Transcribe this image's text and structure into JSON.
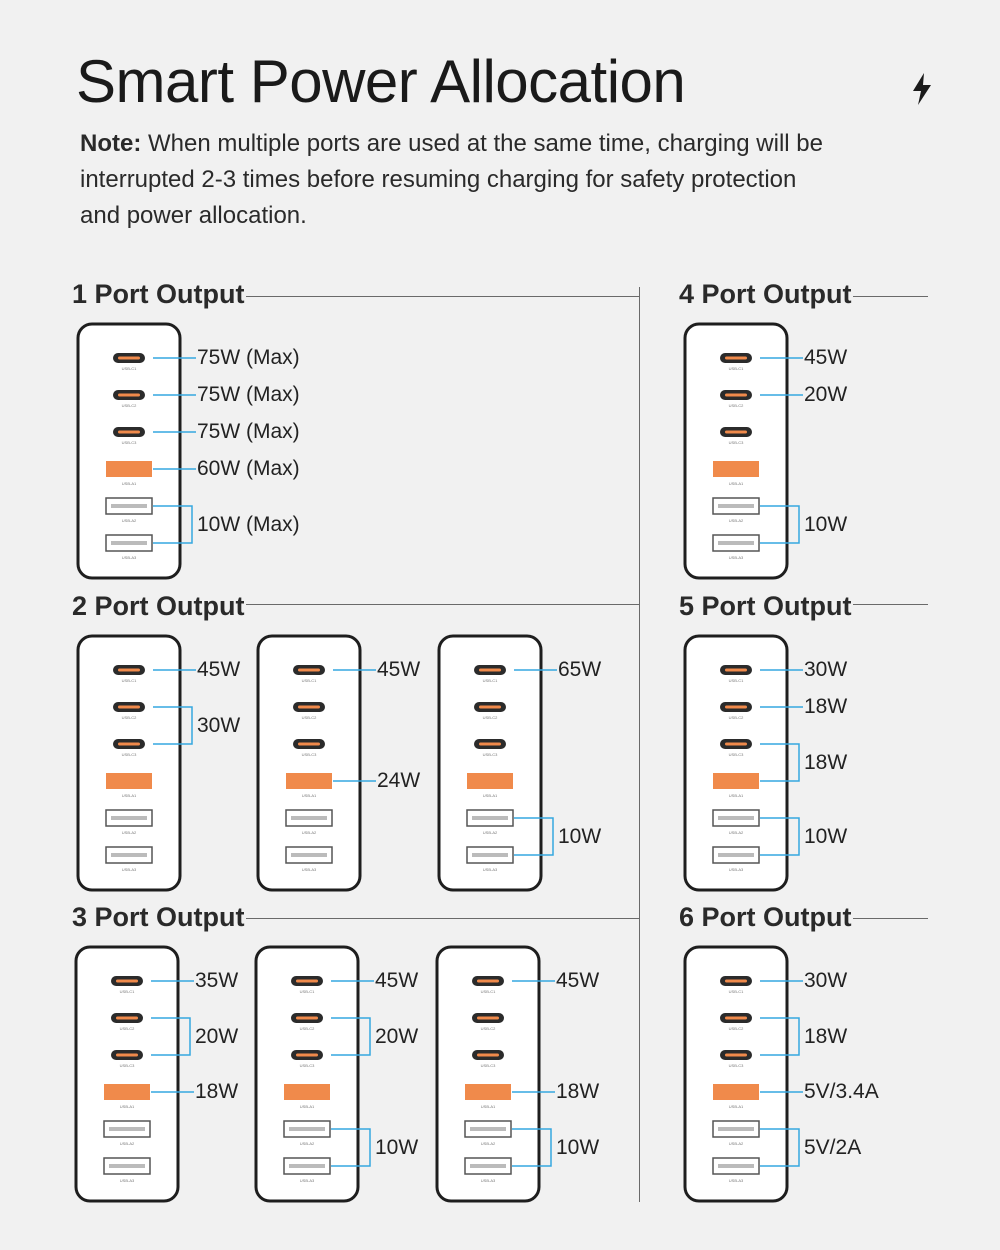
{
  "title": "Smart Power Allocation",
  "bolt_icon": "lightning-bolt-icon",
  "note": {
    "label": "Note:",
    "text": "When multiple ports are used at the same time, charging will be interrupted 2-3 times before resuming charging for safety protection and power allocation."
  },
  "colors": {
    "background": "#f1f1f1",
    "accent_port": "#f08a4b",
    "leader_line": "#35a7e0",
    "charger_outline": "#1e1e1e"
  },
  "port_names": [
    "USB-C1",
    "USB-C2",
    "USB-C3",
    "USB-A1",
    "USB-A2",
    "USB-A3"
  ],
  "sections": [
    {
      "id": "1",
      "title": "1 Port Output",
      "chargers": [
        {
          "labels": [
            {
              "ports": [
                0
              ],
              "text": "75W (Max)"
            },
            {
              "ports": [
                1
              ],
              "text": "75W (Max)"
            },
            {
              "ports": [
                2
              ],
              "text": "75W (Max)"
            },
            {
              "ports": [
                3
              ],
              "text": "60W (Max)"
            },
            {
              "ports": [
                4,
                5
              ],
              "text": "10W (Max)"
            }
          ]
        }
      ]
    },
    {
      "id": "2",
      "title": "2 Port Output",
      "chargers": [
        {
          "labels": [
            {
              "ports": [
                0
              ],
              "text": "45W"
            },
            {
              "ports": [
                1,
                2
              ],
              "text": "30W"
            }
          ]
        },
        {
          "labels": [
            {
              "ports": [
                0
              ],
              "text": "45W"
            },
            {
              "ports": [
                3
              ],
              "text": "24W"
            }
          ]
        },
        {
          "labels": [
            {
              "ports": [
                0
              ],
              "text": "65W"
            },
            {
              "ports": [
                4,
                5
              ],
              "text": "10W"
            }
          ]
        }
      ]
    },
    {
      "id": "3",
      "title": "3 Port Output",
      "chargers": [
        {
          "labels": [
            {
              "ports": [
                0
              ],
              "text": "35W"
            },
            {
              "ports": [
                1,
                2
              ],
              "text": "20W"
            },
            {
              "ports": [
                3
              ],
              "text": "18W"
            }
          ]
        },
        {
          "labels": [
            {
              "ports": [
                0
              ],
              "text": "45W"
            },
            {
              "ports": [
                1,
                2
              ],
              "text": "20W"
            },
            {
              "ports": [
                4,
                5
              ],
              "text": "10W"
            }
          ]
        },
        {
          "labels": [
            {
              "ports": [
                0
              ],
              "text": "45W"
            },
            {
              "ports": [
                3
              ],
              "text": "18W"
            },
            {
              "ports": [
                4,
                5
              ],
              "text": "10W"
            }
          ]
        }
      ]
    },
    {
      "id": "4",
      "title": "4 Port Output",
      "chargers": [
        {
          "labels": [
            {
              "ports": [
                0
              ],
              "text": "45W"
            },
            {
              "ports": [
                1
              ],
              "text": "20W"
            },
            {
              "ports": [
                4,
                5
              ],
              "text": "10W"
            }
          ]
        }
      ]
    },
    {
      "id": "5",
      "title": "5 Port Output",
      "chargers": [
        {
          "labels": [
            {
              "ports": [
                0
              ],
              "text": "30W"
            },
            {
              "ports": [
                1
              ],
              "text": "18W"
            },
            {
              "ports": [
                2,
                3
              ],
              "text": "18W"
            },
            {
              "ports": [
                4,
                5
              ],
              "text": "10W"
            }
          ]
        }
      ]
    },
    {
      "id": "6",
      "title": "6 Port Output",
      "chargers": [
        {
          "labels": [
            {
              "ports": [
                0
              ],
              "text": "30W"
            },
            {
              "ports": [
                1,
                2
              ],
              "text": "18W"
            },
            {
              "ports": [
                3
              ],
              "text": "5V/3.4A"
            },
            {
              "ports": [
                4,
                5
              ],
              "text": "5V/2A"
            }
          ]
        }
      ]
    }
  ]
}
